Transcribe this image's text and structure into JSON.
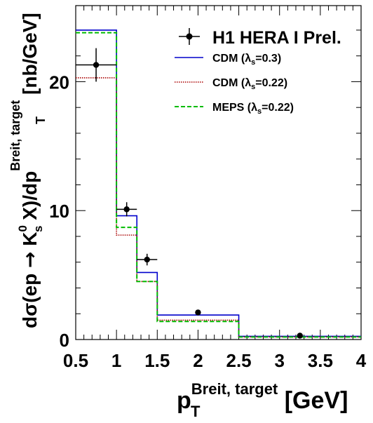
{
  "chart_data": {
    "type": "line",
    "xlim": [
      0.5,
      4
    ],
    "ylim": [
      0,
      25.9
    ],
    "x_ticks": [
      "0.5",
      "1",
      "1.5",
      "2",
      "2.5",
      "3",
      "3.5",
      "4"
    ],
    "y_ticks": [
      "0",
      "10",
      "20"
    ],
    "bin_edges": [
      0.5,
      1.0,
      1.25,
      1.5,
      2.5,
      4.0
    ],
    "xlabel": {
      "main": "p",
      "sub": "T",
      "sup": "Breit, target",
      "unit": " [GeV]"
    },
    "ylabel": {
      "p1": "dσ(ep ",
      "arrow": "→",
      "p2": " K",
      "sup0": "0",
      "subs": "s",
      "p3": " X)/dp",
      "subT": "T",
      "supBT": "Breit, target",
      "unit": " [nb/GeV]"
    },
    "data": {
      "name": "H1 HERA I Prel.",
      "x": [
        0.75,
        1.125,
        1.375,
        2.0,
        3.25
      ],
      "y": [
        21.3,
        10.1,
        6.2,
        2.1,
        0.3
      ],
      "xerr": [
        0.25,
        0.125,
        0.125,
        0.0,
        0.0
      ],
      "yerr": [
        1.3,
        0.55,
        0.45,
        0.15,
        0.05
      ]
    },
    "series": [
      {
        "name": "CDM",
        "lambda": "0.3",
        "color": "#0000cc",
        "dash": "solid",
        "values": [
          24.0,
          9.6,
          5.2,
          1.9,
          0.25
        ]
      },
      {
        "name": "CDM",
        "lambda": "0.22",
        "color": "#aa0000",
        "dash": "dotted",
        "values": [
          20.3,
          8.1,
          4.5,
          1.5,
          0.2
        ]
      },
      {
        "name": "MEPS",
        "lambda": "0.22",
        "color": "#00bb00",
        "dash": "dashed",
        "values": [
          23.8,
          8.7,
          4.5,
          1.4,
          0.2
        ]
      }
    ],
    "legend": {
      "placement": "top-right",
      "lambda_symbol": "λ",
      "lambda_sub": "s",
      "equals": "="
    }
  }
}
